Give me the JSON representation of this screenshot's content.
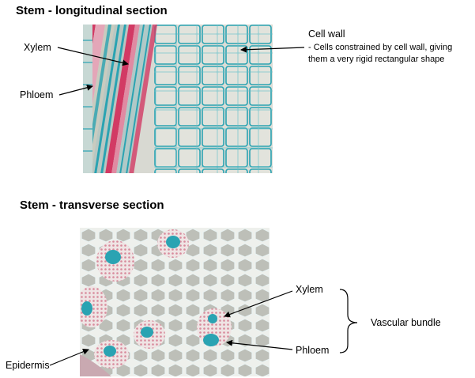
{
  "longitudinal": {
    "heading": "Stem - longitudinal section",
    "labels": {
      "xylem": "Xylem",
      "phloem": "Phloem",
      "cell_wall": "Cell wall",
      "cell_wall_note": "- Cells constrained by cell wall, giving them a very rigid rectangular shape"
    },
    "note_lines": [
      "- Cells constrained by cell wall, giving",
      "them a very rigid rectangular shape"
    ]
  },
  "transverse": {
    "heading": "Stem - transverse section",
    "labels": {
      "xylem": "Xylem",
      "phloem": "Phloem",
      "vascular_bundle": "Vascular bundle",
      "epidermis": "Epidermis"
    }
  },
  "colors": {
    "stain_red": "#d23a64",
    "stain_blue": "#2aa3b2",
    "cell_fill": "#d9dad3",
    "cell_fill_dark": "#bfc1b9",
    "background_grey": "#bcbdb6"
  }
}
